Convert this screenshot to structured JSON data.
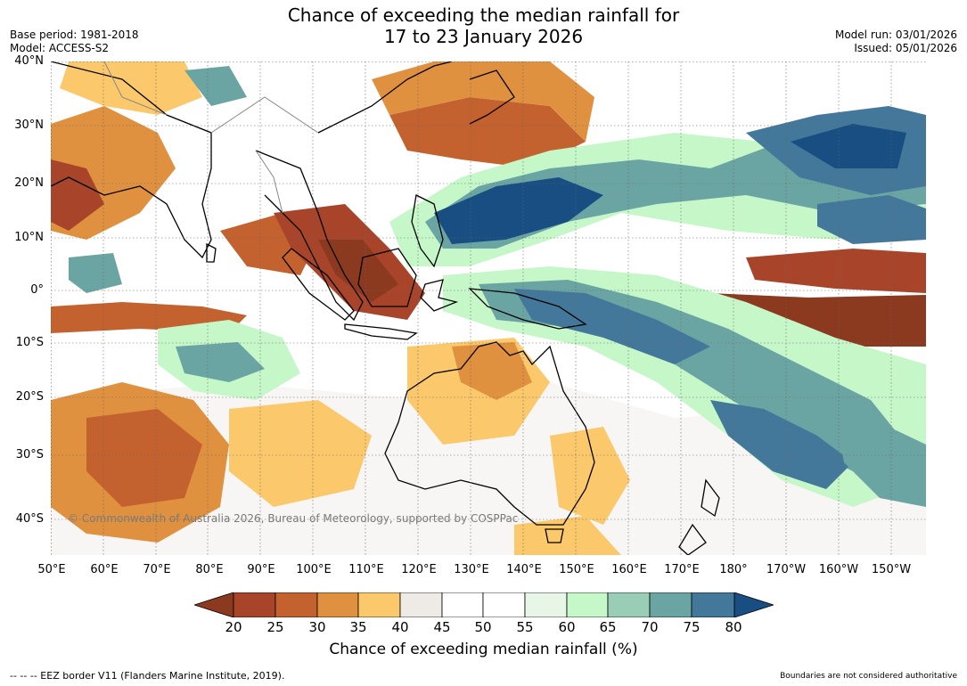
{
  "title": {
    "line1": "Chance of exceeding the median rainfall for",
    "line2": "17 to 23 January 2026"
  },
  "meta": {
    "base_period": "Base period: 1981-2018",
    "model": "Model: ACCESS-S2",
    "model_run": "Model run: 03/01/2026",
    "issued": "Issued: 05/01/2026"
  },
  "map": {
    "region": "Indo-Pacific, 50°E to 145°W, 45°S to 40°N",
    "lat_labels": [
      "40°N",
      "30°N",
      "20°N",
      "10°N",
      "0°",
      "10°S",
      "20°S",
      "30°S",
      "40°S"
    ],
    "lon_labels": [
      "50°E",
      "60°E",
      "70°E",
      "80°E",
      "90°E",
      "100°E",
      "110°E",
      "120°E",
      "130°E",
      "140°E",
      "150°E",
      "160°E",
      "170°E",
      "180°",
      "170°W",
      "160°W",
      "150°W"
    ],
    "copyright": "© Commonwealth of Australia 2026, Bureau of Meteorology, supported by COSPPac"
  },
  "colorbar": {
    "ticks": [
      "20",
      "25",
      "30",
      "35",
      "40",
      "45",
      "50",
      "55",
      "60",
      "65",
      "70",
      "75",
      "80"
    ],
    "colors": {
      "below_20": "#8c3a1f",
      "c20_25": "#a8442a",
      "c25_30": "#c4622f",
      "c30_35": "#e0913f",
      "c35_40": "#fbc86b",
      "c40_45": "#eeebe6",
      "c45_50": "#ffffff",
      "c50_55": "#ffffff",
      "c55_60": "#e8f6e8",
      "c60_65": "#c6f7c9",
      "c65_70": "#9acdb5",
      "c70_75": "#6aa5a3",
      "c75_80": "#44789a",
      "above_80": "#184e82"
    },
    "title": "Chance of exceeding median rainfall (%)"
  },
  "footer": {
    "eez_note": "--  --  -- EEZ border V11 (Flanders Marine Institute, 2019).",
    "disclaimer": "Boundaries are not considered authoritative"
  }
}
